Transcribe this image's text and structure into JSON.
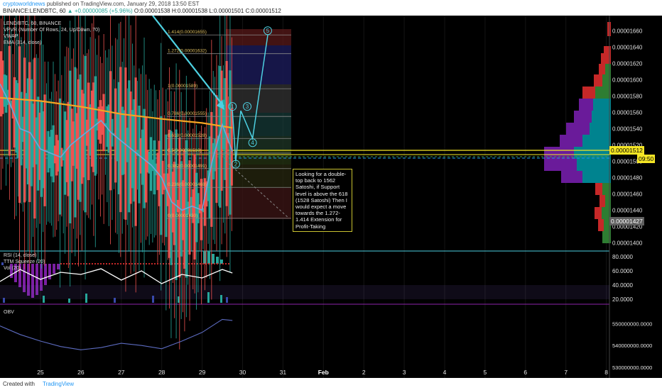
{
  "header": {
    "author": "cryptoworldnews",
    "published": "published on TradingView.com, January 29, 2018 13:50 EST",
    "ticker_line": "BINANCE:LENDBTC, 60",
    "change": "▲ +0.00000085 (+5.96%)",
    "ohlc": "O:0.00001538 H:0.00001538 L:0.00001501 C:0.00001512"
  },
  "indicators": {
    "title": "LEND/BTC, 60, BINANCE",
    "vpvr": "VPVR (Number Of Rows, 24, Up/Down, 70)",
    "vwap": "VWAP",
    "ema": "EMA (314, close)",
    "rsi": "RSI (14, close)",
    "ttm": "TTM Squeeze (20)",
    "vol": "Vol (20)",
    "obv": "OBV"
  },
  "annotation": {
    "text": "Looking for a double-top back to 1562 Satoshi, if Support level is above the 618 (1528 Satoshi) Then I would expect a move towards the 1.272-1.414 Extension for Profit-Taking"
  },
  "footer": {
    "created_with": "Created with",
    "brand": "TradingView"
  },
  "price_tags": {
    "current": "0.00001512",
    "countdown": "09:50",
    "low_marker": "0.00001427"
  },
  "colors": {
    "up": "#26a69a",
    "down": "#ef5350",
    "ema": "#f5a623",
    "vwap": "#6fa8dc",
    "projection": "#4dd0e1",
    "support": "#f5e625",
    "current_price_line": "#2196f3"
  },
  "chart_data": [
    {
      "type": "line",
      "panel": "price",
      "x_tick_labels": [
        "25",
        "26",
        "27",
        "28",
        "29",
        "30",
        "31",
        "Feb",
        "2",
        "3",
        "4",
        "5",
        "6",
        "7",
        "8"
      ],
      "y_tick_labels": [
        "0.00001660",
        "0.00001640",
        "0.00001620",
        "0.00001600",
        "0.00001580",
        "0.00001560",
        "0.00001540",
        "0.00001520",
        "0.00001500",
        "0.00001480",
        "0.00001460",
        "0.00001440",
        "0.00001420",
        "0.00001400"
      ],
      "ylim": [
        1.396e-05,
        1.67e-05
      ],
      "close_series": [
        {
          "x": "Jan 24 00:00",
          "y": 1.595e-05
        },
        {
          "x": "Jan 24 06:00",
          "y": 1.57e-05
        },
        {
          "x": "Jan 24 12:00",
          "y": 1.54e-05
        },
        {
          "x": "Jan 24 18:00",
          "y": 1.535e-05
        },
        {
          "x": "Jan 25 00:00",
          "y": 1.515e-05
        },
        {
          "x": "Jan 25 06:00",
          "y": 1.51e-05
        },
        {
          "x": "Jan 25 12:00",
          "y": 1.505e-05
        },
        {
          "x": "Jan 25 18:00",
          "y": 1.52e-05
        },
        {
          "x": "Jan 26 00:00",
          "y": 1.53e-05
        },
        {
          "x": "Jan 26 06:00",
          "y": 1.54e-05
        },
        {
          "x": "Jan 26 12:00",
          "y": 1.55e-05
        },
        {
          "x": "Jan 26 18:00",
          "y": 1.535e-05
        },
        {
          "x": "Jan 27 00:00",
          "y": 1.525e-05
        },
        {
          "x": "Jan 27 06:00",
          "y": 1.515e-05
        },
        {
          "x": "Jan 27 12:00",
          "y": 1.505e-05
        },
        {
          "x": "Jan 27 18:00",
          "y": 1.495e-05
        },
        {
          "x": "Jan 28 00:00",
          "y": 1.48e-05
        },
        {
          "x": "Jan 28 06:00",
          "y": 1.45e-05
        },
        {
          "x": "Jan 28 12:00",
          "y": 1.44e-05
        },
        {
          "x": "Jan 28 18:00",
          "y": 1.445e-05
        },
        {
          "x": "Jan 29 00:00",
          "y": 1.44e-05
        },
        {
          "x": "Jan 29 06:00",
          "y": 1.5e-05
        },
        {
          "x": "Jan 29 12:00",
          "y": 1.545e-05
        },
        {
          "x": "Jan 29 18:00",
          "y": 1.512e-05
        }
      ],
      "ema_series": [
        {
          "x": "Jan 24 00:00",
          "y": 1.578e-05
        },
        {
          "x": "Jan 25 00:00",
          "y": 1.574e-05
        },
        {
          "x": "Jan 26 00:00",
          "y": 1.567e-05
        },
        {
          "x": "Jan 27 00:00",
          "y": 1.558e-05
        },
        {
          "x": "Jan 28 00:00",
          "y": 1.552e-05
        },
        {
          "x": "Jan 29 00:00",
          "y": 1.547e-05
        },
        {
          "x": "Jan 29 18:00",
          "y": 1.541e-05
        }
      ],
      "fibonacci_levels": [
        {
          "label": "1.414(0.00001655)",
          "value": 1.655e-05
        },
        {
          "label": "1.272(0.00001632)",
          "value": 1.632e-05
        },
        {
          "label": "1(0.00001589)",
          "value": 1.589e-05
        },
        {
          "label": "0.786(0.00001555)",
          "value": 1.555e-05
        },
        {
          "label": "0.618(0.00001528)",
          "value": 1.528e-05
        },
        {
          "label": "0.5(0.00001510)",
          "value": 1.51e-05
        },
        {
          "label": "0.382(0.00001491)",
          "value": 1.491e-05
        },
        {
          "label": "0.236(0.00001468)",
          "value": 1.468e-05
        },
        {
          "label": "0(0.00001430)",
          "value": 1.43e-05
        }
      ],
      "projection_path": [
        {
          "label": "1",
          "x": "Jan 29 18:00",
          "y": 1.562e-05
        },
        {
          "label": "2",
          "x": "Jan 29 20:00",
          "y": 1.5e-05
        },
        {
          "label": "3",
          "x": "Jan 29 23:00",
          "y": 1.562e-05
        },
        {
          "label": "4",
          "x": "Jan 30 06:00",
          "y": 1.528e-05
        },
        {
          "label": "5",
          "x": "Jan 30 15:00",
          "y": 1.655e-05
        }
      ],
      "projection_labels": [
        "1",
        "2",
        "3",
        "4",
        "5"
      ]
    },
    {
      "type": "line",
      "panel": "rsi",
      "y_tick_labels": [
        "80.0000",
        "60.0000",
        "40.0000",
        "20.0000"
      ],
      "ylim": [
        15,
        85
      ],
      "series": [
        {
          "x": "Jan 24",
          "y": 45
        },
        {
          "x": "Jan 24 12:00",
          "y": 62
        },
        {
          "x": "Jan 25",
          "y": 48
        },
        {
          "x": "Jan 25 12:00",
          "y": 58
        },
        {
          "x": "Jan 26",
          "y": 55
        },
        {
          "x": "Jan 26 12:00",
          "y": 63
        },
        {
          "x": "Jan 27",
          "y": 47
        },
        {
          "x": "Jan 27 12:00",
          "y": 60
        },
        {
          "x": "Jan 28",
          "y": 42
        },
        {
          "x": "Jan 28 12:00",
          "y": 55
        },
        {
          "x": "Jan 29",
          "y": 50
        },
        {
          "x": "Jan 29 12:00",
          "y": 62
        },
        {
          "x": "Jan 29 18:00",
          "y": 57
        }
      ]
    },
    {
      "type": "line",
      "panel": "obv",
      "y_tick_labels": [
        "550000000.0000",
        "540000000.0000",
        "530000000.0000"
      ],
      "ylim": [
        527000000,
        558000000
      ],
      "series": [
        {
          "x": "Jan 24",
          "y": 549000000
        },
        {
          "x": "Jan 24 12:00",
          "y": 545000000
        },
        {
          "x": "Jan 25",
          "y": 542000000
        },
        {
          "x": "Jan 25 12:00",
          "y": 539500000
        },
        {
          "x": "Jan 26",
          "y": 538000000
        },
        {
          "x": "Jan 26 12:00",
          "y": 539000000
        },
        {
          "x": "Jan 27",
          "y": 541000000
        },
        {
          "x": "Jan 27 12:00",
          "y": 540000000
        },
        {
          "x": "Jan 28",
          "y": 538500000
        },
        {
          "x": "Jan 28 12:00",
          "y": 542000000
        },
        {
          "x": "Jan 29",
          "y": 546000000
        },
        {
          "x": "Jan 29 12:00",
          "y": 552000000
        },
        {
          "x": "Jan 29 18:00",
          "y": 551500000
        }
      ]
    }
  ]
}
